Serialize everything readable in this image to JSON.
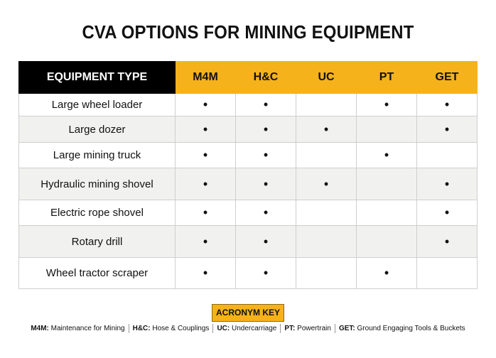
{
  "title": "CVA OPTIONS FOR MINING EQUIPMENT",
  "table": {
    "header": [
      "EQUIPMENT TYPE",
      "M4M",
      "H&C",
      "UC",
      "PT",
      "GET"
    ],
    "rows": [
      [
        "Large wheel loader",
        "•",
        "•",
        null,
        "•",
        "•"
      ],
      [
        "Large dozer",
        "•",
        "•",
        "•",
        null,
        "•"
      ],
      [
        "Large mining truck",
        "•",
        "•",
        null,
        "•",
        null
      ],
      [
        "Hydraulic mining shovel",
        "•",
        "•",
        "•",
        null,
        "•"
      ],
      [
        "Electric rope shovel",
        "•",
        "•",
        null,
        null,
        "•"
      ],
      [
        "Rotary drill",
        "•",
        "•",
        null,
        null,
        "•"
      ],
      [
        "Wheel tractor scraper",
        "•",
        "•",
        null,
        "•",
        null
      ]
    ]
  },
  "acronym_key": {
    "label": "ACRONYM KEY",
    "items": [
      {
        "abbr": "M4M:",
        "text": "Maintenance for Mining"
      },
      {
        "abbr": "H&C:",
        "text": "Hose & Couplings"
      },
      {
        "abbr": "UC:",
        "text": "Undercarriage"
      },
      {
        "abbr": "PT:",
        "text": "Powertrain"
      },
      {
        "abbr": "GET:",
        "text": "Ground Engaging Tools & Buckets"
      }
    ]
  }
}
